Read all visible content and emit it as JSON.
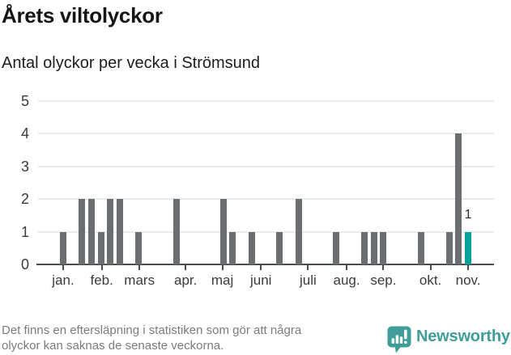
{
  "chart_data": {
    "type": "bar",
    "title": "Årets viltolyckor",
    "subtitle": "Antal olyckor per vecka i Strömsund",
    "x_unit": "week of year",
    "ylim": [
      0,
      5
    ],
    "yticks": [
      0,
      1,
      2,
      3,
      4,
      5
    ],
    "grid": "horizontal",
    "legend": "none",
    "bar_color": "#6b6e70",
    "highlight_color": "#00a29b",
    "values": [
      1,
      0,
      2,
      2,
      1,
      2,
      2,
      0,
      1,
      0,
      0,
      0,
      2,
      0,
      0,
      0,
      0,
      2,
      1,
      0,
      1,
      0,
      0,
      1,
      0,
      2,
      0,
      0,
      0,
      1,
      0,
      0,
      1,
      1,
      1,
      0,
      0,
      0,
      1,
      0,
      0,
      1,
      4,
      1,
      0,
      0,
      0
    ],
    "highlight_week": 44,
    "highlight_value_label": "1",
    "month_ticks": [
      {
        "label": "jan.",
        "week": 1.0
      },
      {
        "label": "feb.",
        "week": 5.1
      },
      {
        "label": "mars",
        "week": 9.1
      },
      {
        "label": "apr.",
        "week": 14.0
      },
      {
        "label": "maj",
        "week": 17.9
      },
      {
        "label": "juni",
        "week": 22.0
      },
      {
        "label": "juli",
        "week": 27.0
      },
      {
        "label": "aug.",
        "week": 31.1
      },
      {
        "label": "sep.",
        "week": 35.0
      },
      {
        "label": "okt.",
        "week": 40.0
      },
      {
        "label": "nov.",
        "week": 44.0
      }
    ]
  },
  "footer": {
    "note_line1": "Det finns en eftersläpning i statistiken som gör att några",
    "note_line2": "olyckor kan saknas de senaste veckorna.",
    "brand": "Newsworthy"
  }
}
